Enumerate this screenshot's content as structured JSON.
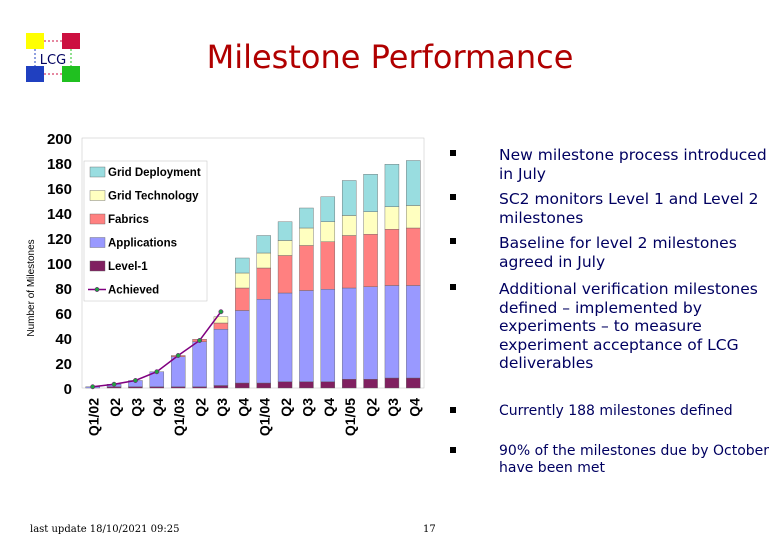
{
  "slide": {
    "title": "Milestone Performance",
    "logo_text": "LCG",
    "footer_date": "last update 18/10/2021 09:25",
    "page_number": "17"
  },
  "bullets": [
    {
      "text": "New milestone process introduced in July"
    },
    {
      "text": "SC2 monitors Level 1 and Level 2 milestones"
    },
    {
      "text": "Baseline for level 2 milestones agreed in July"
    },
    {
      "text": "Additional verification milestones defined – implemented by experiments – to measure experiment acceptance of LCG deliverables"
    },
    {
      "text": "Currently 188 milestones defined"
    },
    {
      "text": "90% of the milestones due by October have been met"
    }
  ],
  "colors": {
    "title": "#b00000",
    "bullet_text": "#000060",
    "grid_deployment": "#99dde0",
    "grid_technology": "#ffffc0",
    "fabrics": "#ff8080",
    "applications": "#9999ff",
    "level1": "#802060",
    "achieved": "#800080",
    "logo_yellow": "#ffff00",
    "logo_red": "#cc1040",
    "logo_blue": "#2040c0",
    "logo_green": "#20c020"
  },
  "chart_data": {
    "type": "bar",
    "stacked": true,
    "ylabel": "Number of Milestones",
    "ylim": [
      0,
      200
    ],
    "yticks": [
      "0",
      "20",
      "40",
      "60",
      "80",
      "100",
      "120",
      "140",
      "160",
      "180",
      "200"
    ],
    "categories": [
      "Q1/02",
      "Q2",
      "Q3",
      "Q4",
      "Q1/03",
      "Q2",
      "Q3",
      "Q4",
      "Q1/04",
      "Q2",
      "Q3",
      "Q4",
      "Q1/05",
      "Q2",
      "Q3",
      "Q4"
    ],
    "legend_position": "top-left",
    "series": [
      {
        "name": "Level-1",
        "values": [
          0,
          1,
          1,
          1,
          1,
          1,
          2,
          4,
          4,
          5,
          5,
          5,
          7,
          7,
          8,
          8
        ]
      },
      {
        "name": "Applications",
        "values": [
          1,
          2,
          5,
          12,
          24,
          36,
          45,
          58,
          67,
          71,
          73,
          74,
          73,
          74,
          74,
          74
        ]
      },
      {
        "name": "Fabrics",
        "values": [
          0,
          0,
          0,
          0,
          1,
          2,
          5,
          18,
          25,
          30,
          36,
          38,
          42,
          42,
          45,
          46
        ]
      },
      {
        "name": "Grid Technology",
        "values": [
          0,
          0,
          0,
          0,
          0,
          0,
          5,
          12,
          12,
          12,
          14,
          16,
          16,
          18,
          18,
          18
        ]
      },
      {
        "name": "Grid Deployment",
        "values": [
          0,
          0,
          0,
          0,
          0,
          0,
          0,
          12,
          14,
          15,
          16,
          20,
          28,
          30,
          34,
          36
        ]
      }
    ],
    "achieved": {
      "name": "Achieved",
      "values": [
        1,
        3,
        6,
        13,
        26,
        38,
        61
      ]
    }
  }
}
